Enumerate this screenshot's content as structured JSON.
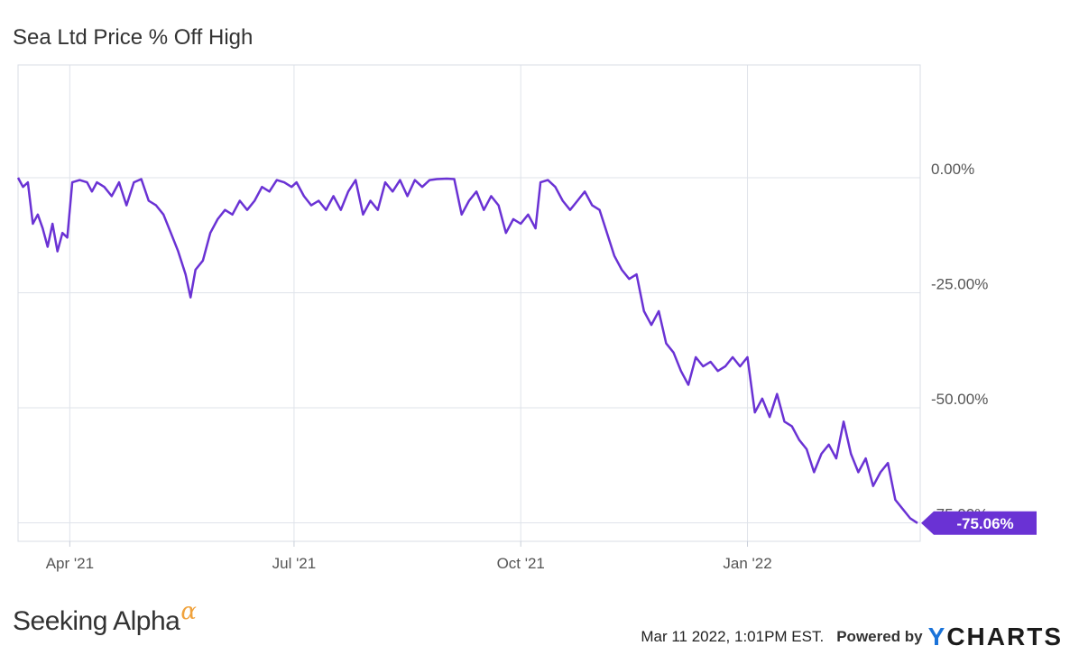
{
  "title": "Sea Ltd Price % Off High",
  "chart_data": {
    "type": "line",
    "title": "Sea Ltd Price % Off High",
    "xlabel": "",
    "ylabel": "",
    "x_ticks": [
      "Apr '21",
      "Jul '21",
      "Oct '21",
      "Jan '22"
    ],
    "y_ticks": [
      "0.00%",
      "-25.00%",
      "-50.00%",
      "-75.00%"
    ],
    "ylim": [
      -77,
      25
    ],
    "x_range": [
      "2021-03-11",
      "2022-03-11"
    ],
    "grid": true,
    "series": [
      {
        "color": "#6a32d4",
        "last_value_label": "-75.06%",
        "points": [
          [
            "2021-03-11",
            0
          ],
          [
            "2021-03-13",
            -2
          ],
          [
            "2021-03-15",
            -1
          ],
          [
            "2021-03-17",
            -10
          ],
          [
            "2021-03-19",
            -8
          ],
          [
            "2021-03-21",
            -11
          ],
          [
            "2021-03-23",
            -15
          ],
          [
            "2021-03-25",
            -10
          ],
          [
            "2021-03-27",
            -16
          ],
          [
            "2021-03-29",
            -12
          ],
          [
            "2021-03-31",
            -13
          ],
          [
            "2021-04-02",
            -1
          ],
          [
            "2021-04-05",
            -0.5
          ],
          [
            "2021-04-08",
            -1
          ],
          [
            "2021-04-10",
            -3
          ],
          [
            "2021-04-12",
            -1
          ],
          [
            "2021-04-15",
            -2
          ],
          [
            "2021-04-18",
            -4
          ],
          [
            "2021-04-21",
            -1
          ],
          [
            "2021-04-24",
            -6
          ],
          [
            "2021-04-27",
            -1
          ],
          [
            "2021-04-30",
            -0.3
          ],
          [
            "2021-05-03",
            -5
          ],
          [
            "2021-05-06",
            -6
          ],
          [
            "2021-05-09",
            -8
          ],
          [
            "2021-05-12",
            -12
          ],
          [
            "2021-05-15",
            -16
          ],
          [
            "2021-05-18",
            -21
          ],
          [
            "2021-05-20",
            -26
          ],
          [
            "2021-05-22",
            -20
          ],
          [
            "2021-05-25",
            -18
          ],
          [
            "2021-05-28",
            -12
          ],
          [
            "2021-05-31",
            -9
          ],
          [
            "2021-06-03",
            -7
          ],
          [
            "2021-06-06",
            -8
          ],
          [
            "2021-06-09",
            -5
          ],
          [
            "2021-06-12",
            -7
          ],
          [
            "2021-06-15",
            -5
          ],
          [
            "2021-06-18",
            -2
          ],
          [
            "2021-06-21",
            -3
          ],
          [
            "2021-06-24",
            -0.5
          ],
          [
            "2021-06-27",
            -1
          ],
          [
            "2021-06-30",
            -2
          ],
          [
            "2021-07-02",
            -1
          ],
          [
            "2021-07-05",
            -4
          ],
          [
            "2021-07-08",
            -6
          ],
          [
            "2021-07-11",
            -5
          ],
          [
            "2021-07-14",
            -7
          ],
          [
            "2021-07-17",
            -4
          ],
          [
            "2021-07-20",
            -7
          ],
          [
            "2021-07-23",
            -3
          ],
          [
            "2021-07-26",
            -0.5
          ],
          [
            "2021-07-29",
            -8
          ],
          [
            "2021-08-01",
            -5
          ],
          [
            "2021-08-04",
            -7
          ],
          [
            "2021-08-07",
            -1
          ],
          [
            "2021-08-10",
            -3
          ],
          [
            "2021-08-13",
            -0.5
          ],
          [
            "2021-08-16",
            -4
          ],
          [
            "2021-08-19",
            -0.5
          ],
          [
            "2021-08-22",
            -2
          ],
          [
            "2021-08-25",
            -0.5
          ],
          [
            "2021-08-28",
            -0.3
          ],
          [
            "2021-09-01",
            -0.2
          ],
          [
            "2021-09-04",
            -0.3
          ],
          [
            "2021-09-07",
            -8
          ],
          [
            "2021-09-10",
            -5
          ],
          [
            "2021-09-13",
            -3
          ],
          [
            "2021-09-16",
            -7
          ],
          [
            "2021-09-19",
            -4
          ],
          [
            "2021-09-22",
            -6
          ],
          [
            "2021-09-25",
            -12
          ],
          [
            "2021-09-28",
            -9
          ],
          [
            "2021-10-01",
            -10
          ],
          [
            "2021-10-04",
            -8
          ],
          [
            "2021-10-07",
            -11
          ],
          [
            "2021-10-09",
            -1
          ],
          [
            "2021-10-12",
            -0.5
          ],
          [
            "2021-10-15",
            -2
          ],
          [
            "2021-10-18",
            -5
          ],
          [
            "2021-10-21",
            -7
          ],
          [
            "2021-10-24",
            -5
          ],
          [
            "2021-10-27",
            -3
          ],
          [
            "2021-10-30",
            -6
          ],
          [
            "2021-11-02",
            -7
          ],
          [
            "2021-11-05",
            -12
          ],
          [
            "2021-11-08",
            -17
          ],
          [
            "2021-11-11",
            -20
          ],
          [
            "2021-11-14",
            -22
          ],
          [
            "2021-11-17",
            -21
          ],
          [
            "2021-11-20",
            -29
          ],
          [
            "2021-11-23",
            -32
          ],
          [
            "2021-11-26",
            -29
          ],
          [
            "2021-11-29",
            -36
          ],
          [
            "2021-12-02",
            -38
          ],
          [
            "2021-12-05",
            -42
          ],
          [
            "2021-12-08",
            -45
          ],
          [
            "2021-12-11",
            -39
          ],
          [
            "2021-12-14",
            -41
          ],
          [
            "2021-12-17",
            -40
          ],
          [
            "2021-12-20",
            -42
          ],
          [
            "2021-12-23",
            -41
          ],
          [
            "2021-12-26",
            -39
          ],
          [
            "2021-12-29",
            -41
          ],
          [
            "2022-01-01",
            -39
          ],
          [
            "2022-01-04",
            -51
          ],
          [
            "2022-01-07",
            -48
          ],
          [
            "2022-01-10",
            -52
          ],
          [
            "2022-01-13",
            -47
          ],
          [
            "2022-01-16",
            -53
          ],
          [
            "2022-01-19",
            -54
          ],
          [
            "2022-01-22",
            -57
          ],
          [
            "2022-01-25",
            -59
          ],
          [
            "2022-01-28",
            -64
          ],
          [
            "2022-01-31",
            -60
          ],
          [
            "2022-02-03",
            -58
          ],
          [
            "2022-02-06",
            -61
          ],
          [
            "2022-02-09",
            -53
          ],
          [
            "2022-02-12",
            -60
          ],
          [
            "2022-02-15",
            -64
          ],
          [
            "2022-02-18",
            -61
          ],
          [
            "2022-02-21",
            -67
          ],
          [
            "2022-02-24",
            -64
          ],
          [
            "2022-02-27",
            -62
          ],
          [
            "2022-03-02",
            -70
          ],
          [
            "2022-03-05",
            -72
          ],
          [
            "2022-03-08",
            -74
          ],
          [
            "2022-03-11",
            -75.06
          ]
        ]
      }
    ]
  },
  "footer": {
    "brand_left": "Seeking Alpha",
    "brand_symbol": "α",
    "timestamp": "Mar 11 2022, 1:01PM EST.",
    "powered_by": "Powered by",
    "ycharts_y": "Y",
    "ycharts_rest": "CHARTS"
  }
}
